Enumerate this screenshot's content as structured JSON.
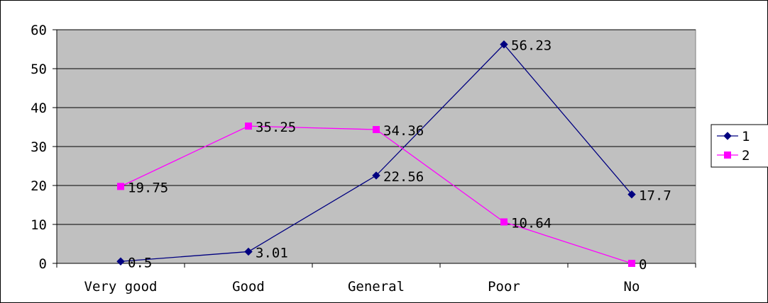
{
  "chart_data": {
    "type": "line",
    "categories": [
      "Very good",
      "Good",
      "General",
      "Poor",
      "No"
    ],
    "series": [
      {
        "name": "1",
        "values": [
          0.5,
          3.01,
          22.56,
          56.23,
          17.7
        ],
        "labels": [
          "0.5",
          "3.01",
          "22.56",
          "56.23",
          "17.7"
        ],
        "color": "#000080",
        "marker": "diamond"
      },
      {
        "name": "2",
        "values": [
          19.75,
          35.25,
          34.36,
          10.64,
          0
        ],
        "labels": [
          "19.75",
          "35.25",
          "34.36",
          "10.64",
          "0"
        ],
        "color": "#ff00ff",
        "marker": "square"
      }
    ],
    "ylim": [
      0,
      60
    ],
    "yticks": [
      "0",
      "10",
      "20",
      "30",
      "40",
      "50",
      "60"
    ],
    "grid": true,
    "legend": "right",
    "plot_background": "#c0c0c0"
  }
}
